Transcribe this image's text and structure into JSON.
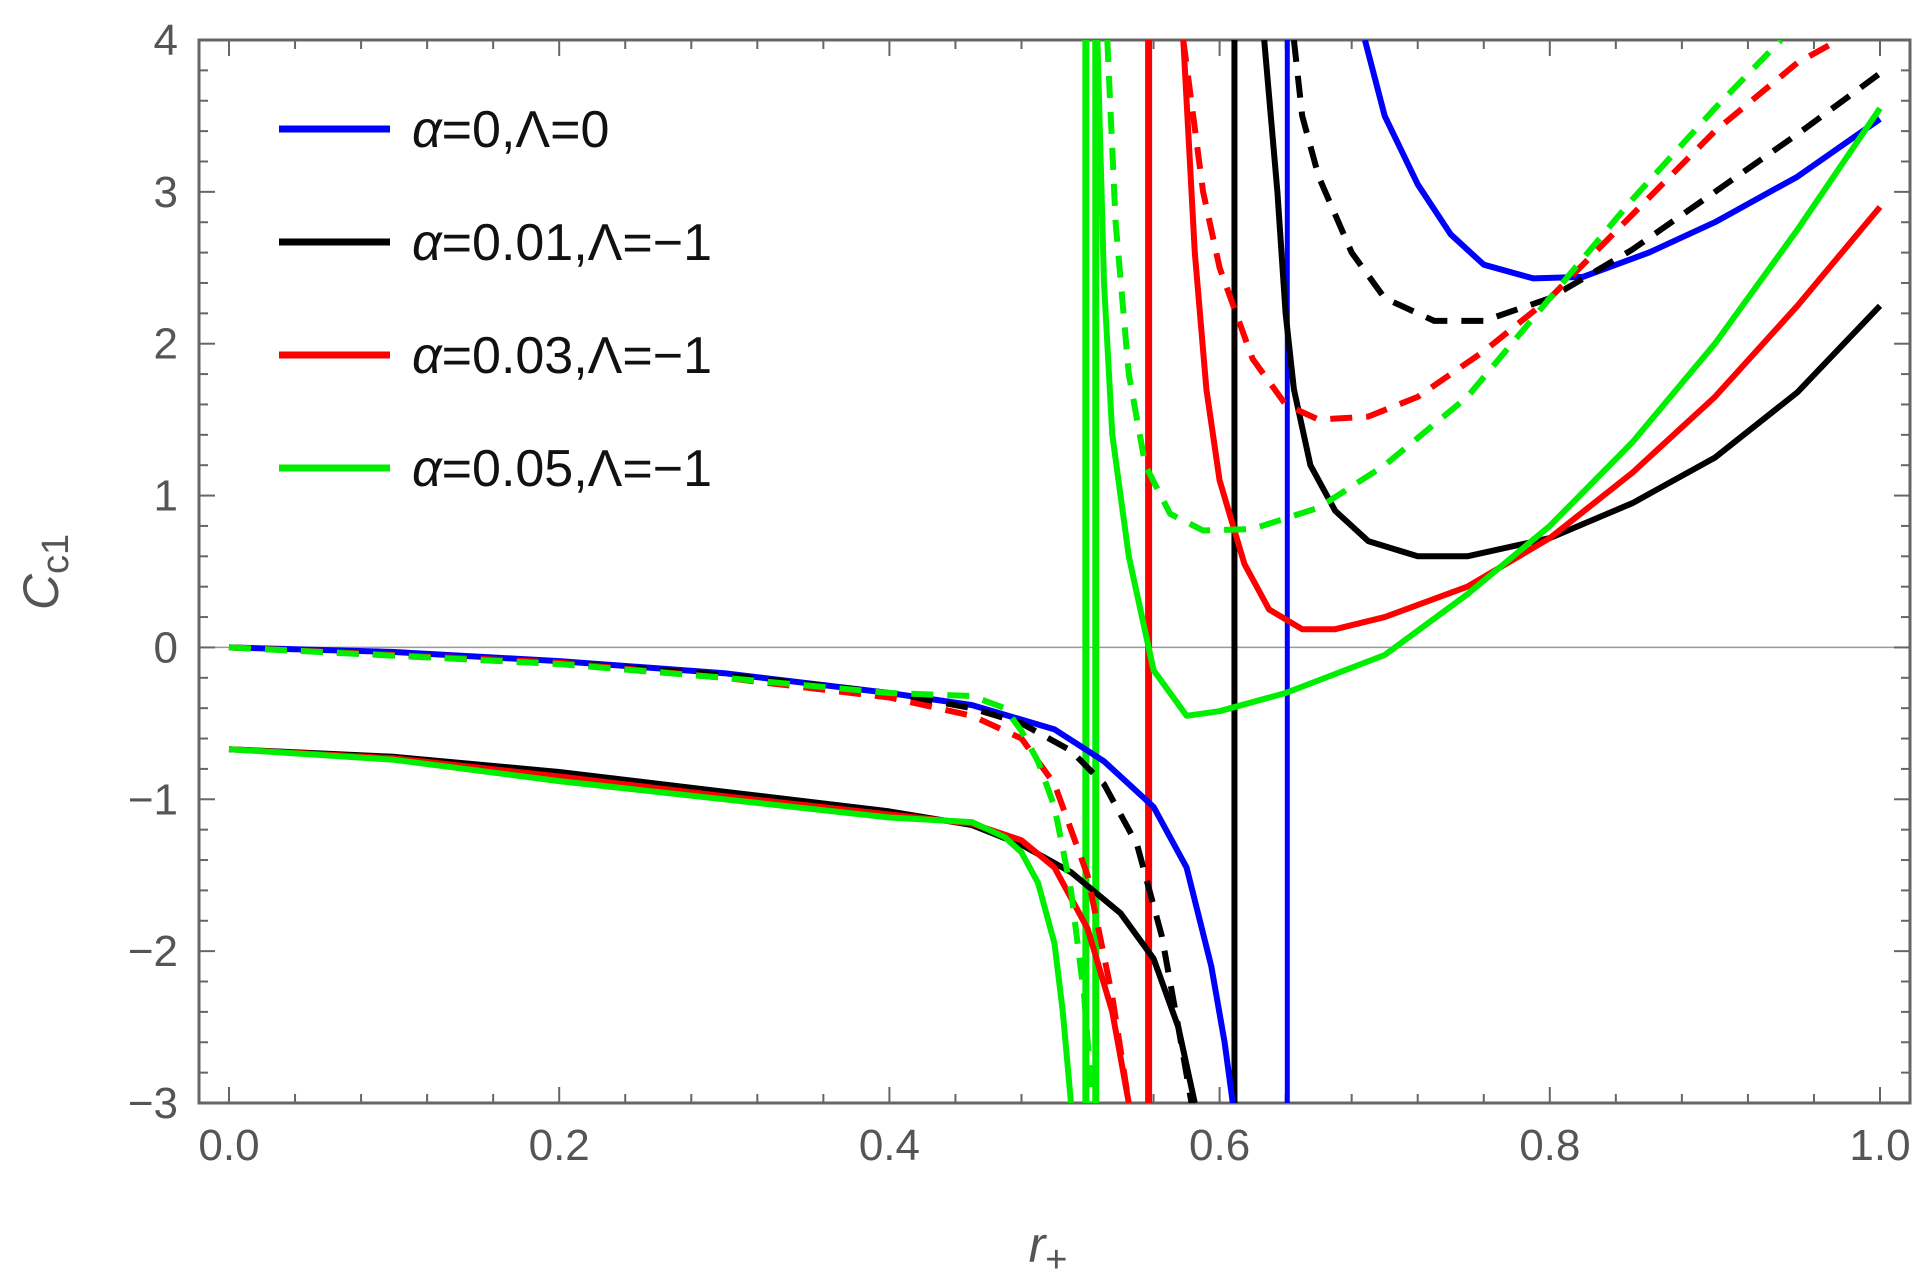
{
  "chart_data": {
    "type": "line",
    "title": "",
    "xlabel": "r",
    "xlabel_sub": "+",
    "ylabel": "C",
    "ylabel_sub": "c1",
    "xlim": [
      0,
      1.0
    ],
    "ylim": [
      -3,
      4
    ],
    "x_ticks": [
      "0.0",
      "0.2",
      "0.4",
      "0.6",
      "0.8",
      "1.0"
    ],
    "y_ticks": [
      "−3",
      "−2",
      "−1",
      "0",
      "1",
      "2",
      "3",
      "4"
    ],
    "legend_position": "top-left",
    "grid": false,
    "colors": {
      "blue": "#0000ff",
      "black": "#000000",
      "red": "#ff0000",
      "green": "#00ee00"
    },
    "legend": [
      {
        "alpha": "α",
        "rest": "=0,Λ=0",
        "color": "#0000ff"
      },
      {
        "alpha": "α",
        "rest": "=0.01,Λ=−1",
        "color": "#000000"
      },
      {
        "alpha": "α",
        "rest": "=0.03,Λ=−1",
        "color": "#ff0000"
      },
      {
        "alpha": "α",
        "rest": "=0.05,Λ=−1",
        "color": "#00ee00"
      }
    ],
    "series": [
      {
        "color": "#0000ff",
        "style": "solid",
        "segments": [
          [
            [
              0,
              0
            ],
            [
              0.1,
              -0.03
            ],
            [
              0.2,
              -0.09
            ],
            [
              0.3,
              -0.17
            ],
            [
              0.4,
              -0.3
            ],
            [
              0.45,
              -0.38
            ],
            [
              0.5,
              -0.54
            ],
            [
              0.53,
              -0.75
            ],
            [
              0.56,
              -1.05
            ],
            [
              0.58,
              -1.45
            ],
            [
              0.595,
              -2.1
            ],
            [
              0.603,
              -2.6
            ],
            [
              0.608,
              -3
            ]
          ],
          [
            [
              0.688,
              4
            ],
            [
              0.7,
              3.5
            ],
            [
              0.72,
              3.05
            ],
            [
              0.74,
              2.72
            ],
            [
              0.76,
              2.52
            ],
            [
              0.79,
              2.43
            ],
            [
              0.82,
              2.44
            ],
            [
              0.86,
              2.6
            ],
            [
              0.9,
              2.8
            ],
            [
              0.95,
              3.1
            ],
            [
              1.0,
              3.48
            ]
          ]
        ]
      },
      {
        "color": "#000000",
        "style": "solid",
        "segments": [
          [
            [
              0,
              -0.67
            ],
            [
              0.1,
              -0.72
            ],
            [
              0.2,
              -0.82
            ],
            [
              0.3,
              -0.95
            ],
            [
              0.4,
              -1.08
            ],
            [
              0.45,
              -1.17
            ],
            [
              0.48,
              -1.3
            ],
            [
              0.51,
              -1.48
            ],
            [
              0.54,
              -1.75
            ],
            [
              0.56,
              -2.05
            ],
            [
              0.575,
              -2.5
            ],
            [
              0.585,
              -3
            ]
          ],
          [
            [
              0.627,
              4
            ],
            [
              0.635,
              3.0
            ],
            [
              0.64,
              2.2
            ],
            [
              0.645,
              1.7
            ],
            [
              0.655,
              1.2
            ],
            [
              0.67,
              0.9
            ],
            [
              0.69,
              0.7
            ],
            [
              0.72,
              0.6
            ],
            [
              0.75,
              0.6
            ],
            [
              0.8,
              0.72
            ],
            [
              0.85,
              0.95
            ],
            [
              0.9,
              1.25
            ],
            [
              0.95,
              1.68
            ],
            [
              1.0,
              2.25
            ]
          ]
        ]
      },
      {
        "color": "#ff0000",
        "style": "solid",
        "segments": [
          [
            [
              0,
              -0.67
            ],
            [
              0.1,
              -0.73
            ],
            [
              0.2,
              -0.85
            ],
            [
              0.3,
              -0.98
            ],
            [
              0.4,
              -1.1
            ],
            [
              0.45,
              -1.16
            ],
            [
              0.48,
              -1.27
            ],
            [
              0.5,
              -1.45
            ],
            [
              0.52,
              -1.85
            ],
            [
              0.535,
              -2.4
            ],
            [
              0.545,
              -3
            ]
          ],
          [
            [
              0.578,
              4
            ],
            [
              0.585,
              2.6
            ],
            [
              0.592,
              1.7
            ],
            [
              0.6,
              1.1
            ],
            [
              0.615,
              0.55
            ],
            [
              0.63,
              0.25
            ],
            [
              0.65,
              0.12
            ],
            [
              0.67,
              0.12
            ],
            [
              0.7,
              0.2
            ],
            [
              0.75,
              0.4
            ],
            [
              0.8,
              0.72
            ],
            [
              0.85,
              1.15
            ],
            [
              0.9,
              1.65
            ],
            [
              0.95,
              2.25
            ],
            [
              1.0,
              2.9
            ]
          ]
        ]
      },
      {
        "color": "#00ee00",
        "style": "solid",
        "segments": [
          [
            [
              0,
              -0.67
            ],
            [
              0.1,
              -0.74
            ],
            [
              0.2,
              -0.88
            ],
            [
              0.3,
              -1.0
            ],
            [
              0.4,
              -1.12
            ],
            [
              0.45,
              -1.15
            ],
            [
              0.47,
              -1.25
            ],
            [
              0.48,
              -1.35
            ],
            [
              0.49,
              -1.55
            ],
            [
              0.5,
              -1.95
            ],
            [
              0.505,
              -2.4
            ],
            [
              0.51,
              -3
            ]
          ],
          [
            [
              0.526,
              4
            ],
            [
              0.53,
              2.4
            ],
            [
              0.535,
              1.4
            ],
            [
              0.545,
              0.6
            ],
            [
              0.56,
              -0.15
            ],
            [
              0.58,
              -0.45
            ],
            [
              0.6,
              -0.42
            ],
            [
              0.64,
              -0.3
            ],
            [
              0.7,
              -0.05
            ],
            [
              0.75,
              0.35
            ],
            [
              0.8,
              0.8
            ],
            [
              0.85,
              1.35
            ],
            [
              0.9,
              2.0
            ],
            [
              0.95,
              2.75
            ],
            [
              1.0,
              3.55
            ]
          ]
        ]
      },
      {
        "color": "#000000",
        "style": "dashed",
        "segments": [
          [
            [
              0,
              0
            ],
            [
              0.2,
              -0.1
            ],
            [
              0.3,
              -0.18
            ],
            [
              0.4,
              -0.3
            ],
            [
              0.45,
              -0.4
            ],
            [
              0.48,
              -0.5
            ],
            [
              0.51,
              -0.68
            ],
            [
              0.53,
              -0.9
            ],
            [
              0.55,
              -1.3
            ],
            [
              0.565,
              -1.9
            ],
            [
              0.575,
              -2.5
            ],
            [
              0.583,
              -3
            ]
          ],
          [
            [
              0.645,
              4
            ],
            [
              0.65,
              3.5
            ],
            [
              0.66,
              3.1
            ],
            [
              0.68,
              2.6
            ],
            [
              0.7,
              2.3
            ],
            [
              0.73,
              2.15
            ],
            [
              0.76,
              2.15
            ],
            [
              0.8,
              2.3
            ],
            [
              0.85,
              2.62
            ],
            [
              0.9,
              3.0
            ],
            [
              0.95,
              3.38
            ],
            [
              1.0,
              3.78
            ]
          ]
        ]
      },
      {
        "color": "#ff0000",
        "style": "dashed",
        "segments": [
          [
            [
              0,
              0
            ],
            [
              0.2,
              -0.1
            ],
            [
              0.3,
              -0.2
            ],
            [
              0.4,
              -0.33
            ],
            [
              0.45,
              -0.45
            ],
            [
              0.48,
              -0.6
            ],
            [
              0.5,
              -0.9
            ],
            [
              0.52,
              -1.5
            ],
            [
              0.535,
              -2.3
            ],
            [
              0.545,
              -3
            ]
          ],
          [
            [
              0.578,
              4
            ],
            [
              0.59,
              3.0
            ],
            [
              0.6,
              2.5
            ],
            [
              0.62,
              1.9
            ],
            [
              0.64,
              1.6
            ],
            [
              0.66,
              1.5
            ],
            [
              0.69,
              1.52
            ],
            [
              0.72,
              1.65
            ],
            [
              0.76,
              1.95
            ],
            [
              0.8,
              2.3
            ],
            [
              0.85,
              2.85
            ],
            [
              0.9,
              3.4
            ],
            [
              0.95,
              3.85
            ],
            [
              0.975,
              4
            ]
          ]
        ]
      },
      {
        "color": "#00ee00",
        "style": "dashed",
        "segments": [
          [
            [
              0,
              0
            ],
            [
              0.2,
              -0.11
            ],
            [
              0.3,
              -0.2
            ],
            [
              0.4,
              -0.3
            ],
            [
              0.45,
              -0.32
            ],
            [
              0.47,
              -0.4
            ],
            [
              0.48,
              -0.55
            ],
            [
              0.49,
              -0.75
            ],
            [
              0.5,
              -1.05
            ],
            [
              0.51,
              -1.6
            ],
            [
              0.518,
              -2.3
            ],
            [
              0.523,
              -3
            ]
          ],
          [
            [
              0.532,
              4
            ],
            [
              0.537,
              2.8
            ],
            [
              0.545,
              1.8
            ],
            [
              0.555,
              1.2
            ],
            [
              0.57,
              0.88
            ],
            [
              0.59,
              0.77
            ],
            [
              0.62,
              0.78
            ],
            [
              0.66,
              0.92
            ],
            [
              0.7,
              1.2
            ],
            [
              0.75,
              1.65
            ],
            [
              0.8,
              2.3
            ],
            [
              0.85,
              2.95
            ],
            [
              0.9,
              3.55
            ],
            [
              0.94,
              4
            ]
          ]
        ]
      }
    ],
    "asymptotes": [
      {
        "x": 0.519,
        "color": "#00ee00",
        "width": 7
      },
      {
        "x": 0.525,
        "color": "#00ee00",
        "width": 7
      },
      {
        "x": 0.557,
        "color": "#ff0000",
        "width": 7
      },
      {
        "x": 0.609,
        "color": "#000000",
        "width": 6
      },
      {
        "x": 0.641,
        "color": "#0000ff",
        "width": 5
      }
    ]
  }
}
